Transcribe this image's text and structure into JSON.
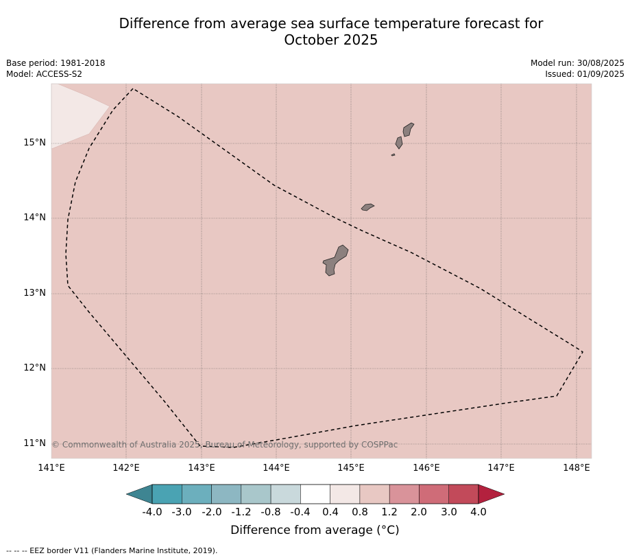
{
  "title": {
    "line1": "Difference from average sea surface temperature forecast for",
    "line2": "October 2025"
  },
  "meta_left": {
    "base_period": "Base period: 1981-2018",
    "model": "Model: ACCESS-S2"
  },
  "meta_right": {
    "model_run": "Model run: 30/08/2025",
    "issued": "Issued: 01/09/2025"
  },
  "map": {
    "lat_labels": [
      "15°N",
      "14°N",
      "13°N",
      "12°N",
      "11°N"
    ],
    "lon_labels": [
      "141°E",
      "142°E",
      "143°E",
      "144°E",
      "145°E",
      "146°E",
      "147°E",
      "148°E"
    ],
    "background_color": "#e8c8c3",
    "anomaly_patch_color": "#f3e8e6",
    "land_color": "#8c807e",
    "copyright": "© Commonwealth of Australia 2025, Bureau of Meteorology, supported by COSPPac"
  },
  "colorbar": {
    "labels": [
      "-4.0",
      "-3.0",
      "-2.0",
      "-1.2",
      "-0.8",
      "-0.4",
      "0.4",
      "0.8",
      "1.2",
      "2.0",
      "3.0",
      "4.0"
    ],
    "colors": [
      "#4aa3b3",
      "#6cafbd",
      "#8db7c2",
      "#a9c7cb",
      "#c9d9dc",
      "#ffffff",
      "#f3e8e6",
      "#e8c8c3",
      "#d9939a",
      "#cf6c78",
      "#c24a5a"
    ],
    "under_color": "#3e8592",
    "over_color": "#b3213e",
    "title": "Difference from average ($^\\circ$C)",
    "title_display": "Difference from average (°C)"
  },
  "footer": {
    "legend_text": "--  --  -- EEZ border V11 (Flanders Marine Institute, 2019)."
  }
}
